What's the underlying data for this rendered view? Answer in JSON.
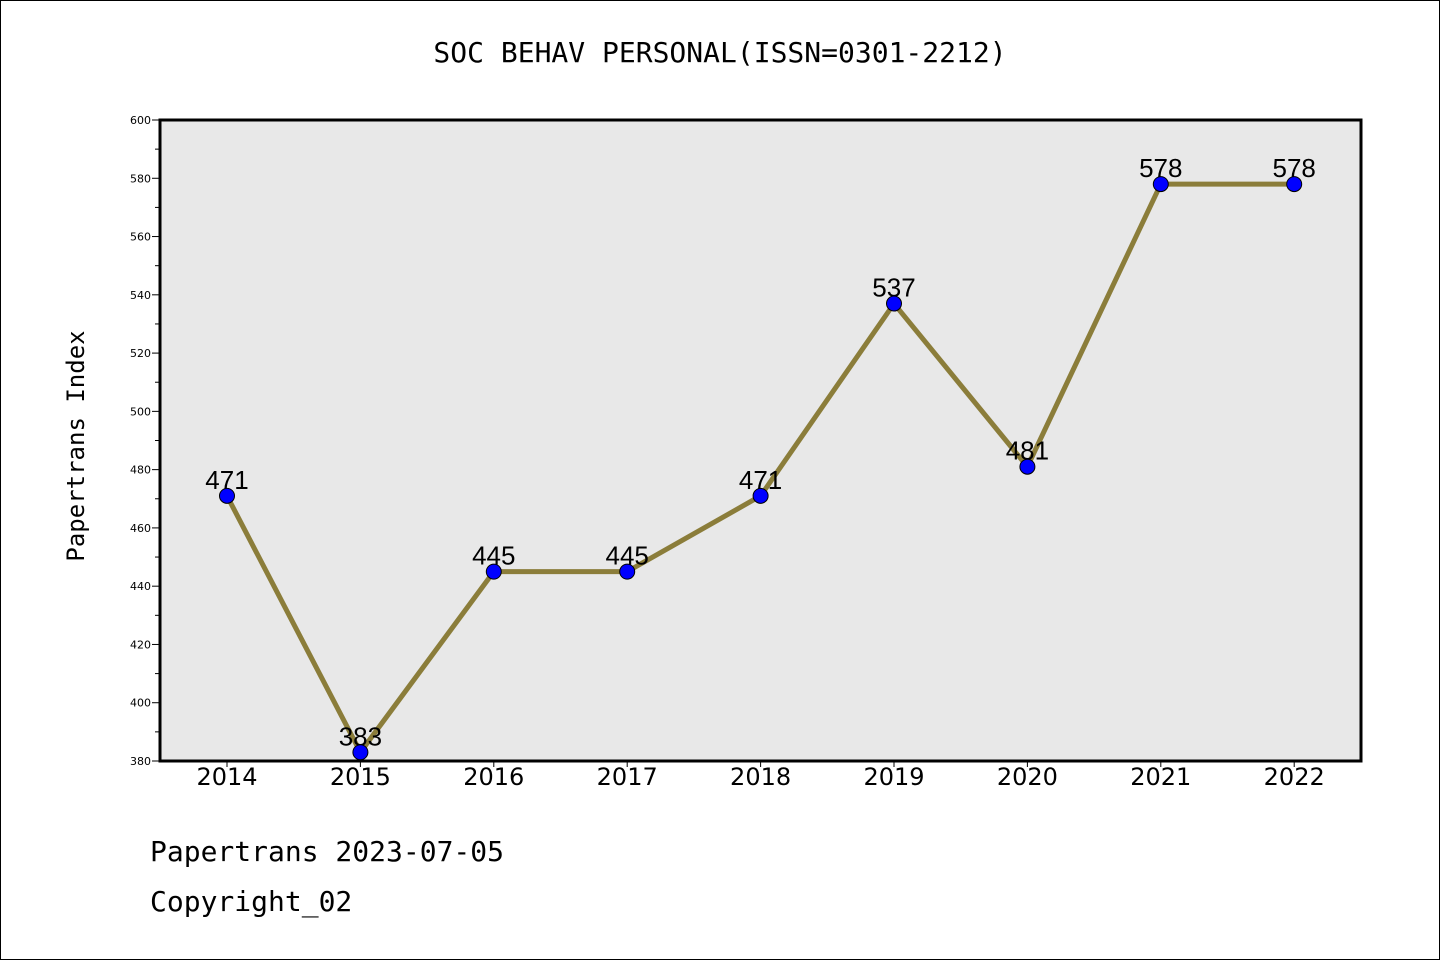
{
  "chart_data": {
    "type": "line",
    "title": "SOC BEHAV PERSONAL(ISSN=0301-2212)",
    "xlabel": "",
    "ylabel": "Papertrans Index",
    "x": [
      "2014",
      "2015",
      "2016",
      "2017",
      "2018",
      "2019",
      "2020",
      "2021",
      "2022"
    ],
    "series": [
      {
        "values": [
          471,
          383,
          445,
          445,
          471,
          537,
          481,
          578,
          578
        ]
      }
    ],
    "ylim": [
      380,
      600
    ],
    "yticks": [
      380,
      400,
      420,
      440,
      460,
      480,
      500,
      520,
      540,
      560,
      580,
      600
    ],
    "grid": false,
    "plot_background": "#e8e8e8",
    "line_color": "#8b7d3a",
    "marker_color": "#0000ff",
    "data_labels": true
  },
  "footer": {
    "date_text": "Papertrans 2023-07-05",
    "copyright_text": "Copyright_02"
  }
}
